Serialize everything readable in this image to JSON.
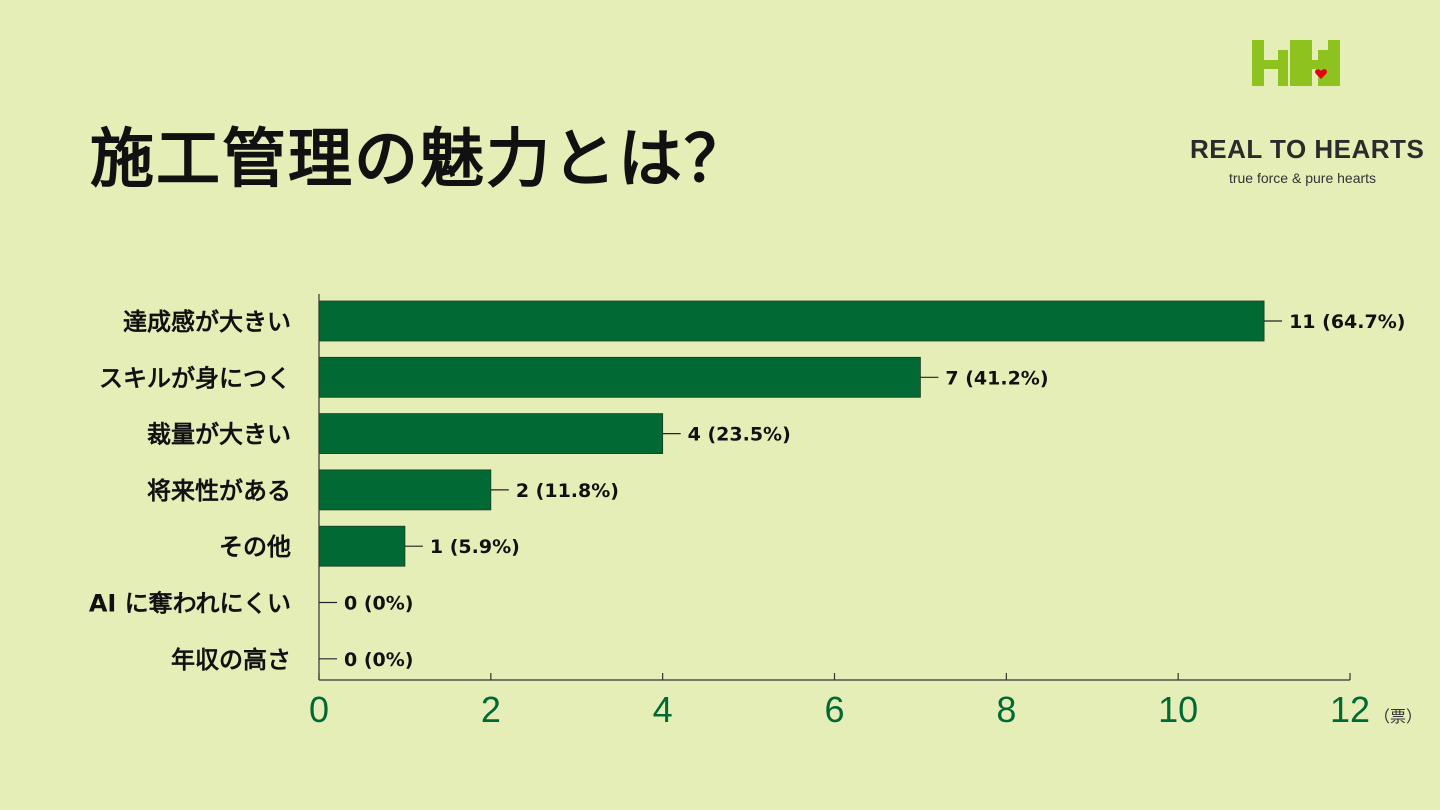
{
  "title": "施工管理の魅力とは？",
  "logo": {
    "brand": "REAL TO HEARTS",
    "tagline": "true force & pure hearts",
    "colors": {
      "green": "#8dc21f",
      "heart": "#e60012"
    }
  },
  "colors": {
    "bar": "#006934",
    "axis_tick_text": "#006934",
    "label_text": "#111111"
  },
  "chart_data": {
    "type": "bar",
    "orientation": "horizontal",
    "categories": [
      "達成感が大きい",
      "スキルが身につく",
      "裁量が大きい",
      "将来性がある",
      "その他",
      "AI に奪われにくい",
      "年収の高さ"
    ],
    "values": [
      11,
      7,
      4,
      2,
      1,
      0,
      0
    ],
    "data_labels": [
      "11 (64.7%)",
      "7 (41.2%)",
      "4 (23.5%)",
      "2 (11.8%)",
      "1 (5.9%)",
      "0 (0%)",
      "0 (0%)"
    ],
    "xlim": [
      0,
      12
    ],
    "xticks": [
      0,
      2,
      4,
      6,
      8,
      10,
      12
    ],
    "xtick_labels": [
      "0",
      "2",
      "4",
      "6",
      "8",
      "10",
      "12"
    ],
    "unit_label": "（票）",
    "grid": false
  }
}
